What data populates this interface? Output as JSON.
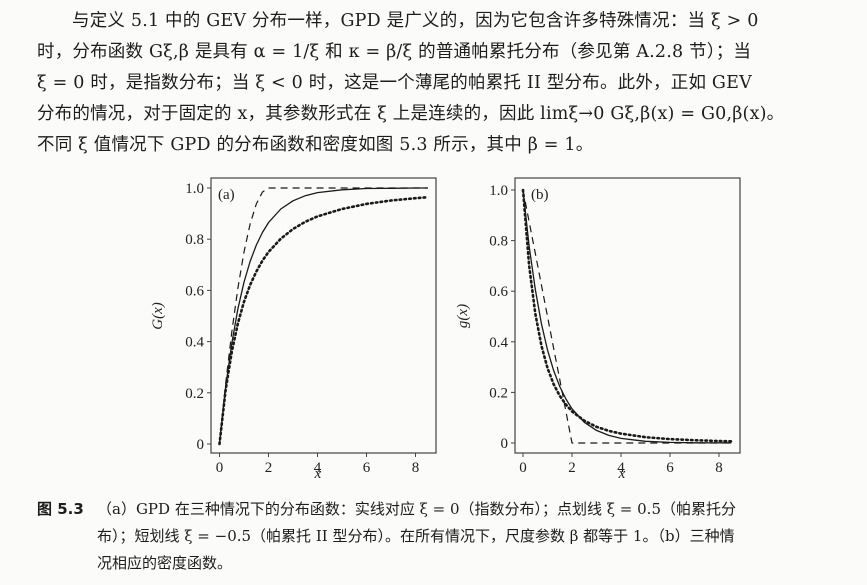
{
  "paragraph": {
    "lines": [
      "与定义 5.1 中的 GEV 分布一样，GPD 是广义的，因为它包含许多特殊情况：当 ξ > 0",
      "时，分布函数 Gξ,β 是具有 α = 1/ξ 和 κ = β/ξ 的普通帕累托分布（参见第 A.2.8 节）；当",
      "ξ = 0 时，是指数分布；当 ξ < 0 时，这是一个薄尾的帕累托 II 型分布。此外，正如 GEV",
      "分布的情况，对于固定的 x，其参数形式在 ξ 上是连续的，因此 limξ→0 Gξ,β(x) = G0,β(x)。",
      "不同 ξ 值情况下 GPD 的分布函数和密度如图 5.3 所示，其中 β = 1。"
    ]
  },
  "caption": {
    "label": "图 5.3",
    "lines": [
      "（a）GPD 在三种情况下的分布函数：实线对应 ξ = 0（指数分布）；点划线 ξ = 0.5（帕累托分",
      "布）；短划线 ξ = −0.5（帕累托 II 型分布）。在所有情况下，尺度参数 β 都等于 1。（b）三种情",
      "况相应的密度函数。"
    ]
  },
  "chart_data": [
    {
      "type": "line",
      "panel_label": "(a)",
      "title": "",
      "xlabel": "x",
      "ylabel": "G(x)",
      "xlim": [
        -0.3,
        8.9
      ],
      "ylim": [
        -0.035,
        1.04
      ],
      "xticks": [
        "0",
        "2",
        "4",
        "6",
        "8"
      ],
      "yticks": [
        "0",
        "0.2",
        "0.4",
        "0.6",
        "0.8",
        "1.0"
      ],
      "grid": false,
      "legend": "none",
      "x": [
        0,
        0.25,
        0.5,
        0.75,
        1,
        1.25,
        1.5,
        1.75,
        2,
        2.5,
        3,
        3.5,
        4,
        5,
        6,
        7,
        8,
        8.5
      ],
      "series": [
        {
          "name": "ξ = 0 (exponential)",
          "style": "solid",
          "values": [
            0,
            0.221,
            0.393,
            0.528,
            0.632,
            0.713,
            0.777,
            0.826,
            0.865,
            0.918,
            0.95,
            0.97,
            0.982,
            0.993,
            0.998,
            0.999,
            1.0,
            1.0
          ]
        },
        {
          "name": "ξ = 0.5 (Pareto)",
          "style": "dotted",
          "values": [
            0,
            0.21,
            0.36,
            0.471,
            0.556,
            0.621,
            0.673,
            0.716,
            0.75,
            0.802,
            0.84,
            0.868,
            0.889,
            0.918,
            0.938,
            0.951,
            0.96,
            0.964
          ]
        },
        {
          "name": "ξ = −0.5 (Pareto type II)",
          "style": "dashed",
          "values": [
            0,
            0.234,
            0.4375,
            0.609,
            0.75,
            0.859,
            0.9375,
            0.984,
            1.0,
            1.0,
            1.0,
            1.0,
            1.0,
            1.0,
            1.0,
            1.0,
            1.0,
            1.0
          ]
        }
      ]
    },
    {
      "type": "line",
      "panel_label": "(b)",
      "title": "",
      "xlabel": "x",
      "ylabel": "g(x)",
      "xlim": [
        -0.3,
        8.9
      ],
      "ylim": [
        -0.04,
        1.04
      ],
      "xticks": [
        "0",
        "2",
        "4",
        "6",
        "8"
      ],
      "yticks": [
        "0",
        "0.2",
        "0.4",
        "0.6",
        "0.8",
        "1.0"
      ],
      "grid": false,
      "legend": "none",
      "x": [
        0,
        0.25,
        0.5,
        0.75,
        1,
        1.25,
        1.5,
        1.75,
        2,
        2.5,
        3,
        3.5,
        4,
        5,
        6,
        7,
        8,
        8.5
      ],
      "series": [
        {
          "name": "ξ = 0 (exponential)",
          "style": "solid",
          "values": [
            1,
            0.779,
            0.607,
            0.472,
            0.368,
            0.287,
            0.223,
            0.174,
            0.135,
            0.082,
            0.05,
            0.03,
            0.018,
            0.0067,
            0.0025,
            0.0009,
            0.0003,
            0.0002
          ]
        },
        {
          "name": "ξ = 0.5 (Pareto)",
          "style": "dotted",
          "values": [
            1,
            0.702,
            0.512,
            0.385,
            0.296,
            0.233,
            0.186,
            0.152,
            0.125,
            0.088,
            0.064,
            0.048,
            0.037,
            0.023,
            0.0156,
            0.011,
            0.008,
            0.0068
          ]
        },
        {
          "name": "ξ = −0.5 (Pareto type II)",
          "style": "dashed",
          "values": [
            1,
            0.875,
            0.75,
            0.625,
            0.5,
            0.375,
            0.25,
            0.125,
            0,
            0,
            0,
            0,
            0,
            0,
            0,
            0,
            0,
            0
          ]
        }
      ]
    }
  ],
  "colors": {
    "page": "#fbfbfa",
    "ink": "#1d1d1d",
    "frame": "#444444"
  }
}
